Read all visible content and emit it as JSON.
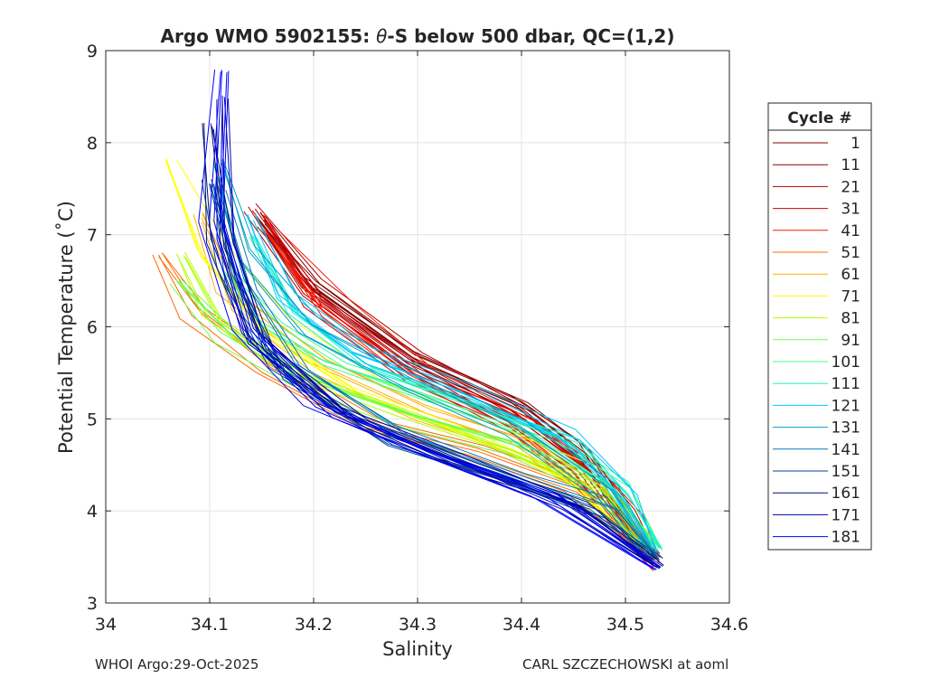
{
  "chart_data": {
    "type": "line",
    "title_prefix": "Argo WMO 5902155: ",
    "title_theta": "θ",
    "title_suffix": "-S below 500 dbar,  QC=(1,2)",
    "xlabel": "Salinity",
    "ylabel": "Potential Temperature (˚C)",
    "xlim": [
      34.0,
      34.6
    ],
    "ylim": [
      3,
      9
    ],
    "xticks": [
      34.0,
      34.1,
      34.2,
      34.3,
      34.4,
      34.5,
      34.6
    ],
    "xtick_labels": [
      "34",
      "34.1",
      "34.2",
      "34.3",
      "34.4",
      "34.5",
      "34.6"
    ],
    "yticks": [
      3,
      4,
      5,
      6,
      7,
      8,
      9
    ],
    "ytick_labels": [
      "3",
      "4",
      "5",
      "6",
      "7",
      "8",
      "9"
    ],
    "grid": true,
    "legend_title": "Cycle #",
    "legend_position": "right-outside",
    "series": [
      {
        "name": "1",
        "color": "#800000",
        "values": [
          [
            34.15,
            7.2
          ],
          [
            34.2,
            6.5
          ],
          [
            34.3,
            5.7
          ],
          [
            34.4,
            5.2
          ],
          [
            34.46,
            4.7
          ],
          [
            34.5,
            4.0
          ],
          [
            34.53,
            3.5
          ]
        ]
      },
      {
        "name": "11",
        "color": "#8c0000",
        "values": [
          [
            34.15,
            7.1
          ],
          [
            34.2,
            6.4
          ],
          [
            34.3,
            5.6
          ],
          [
            34.4,
            5.1
          ],
          [
            34.46,
            4.6
          ],
          [
            34.5,
            4.0
          ],
          [
            34.53,
            3.5
          ]
        ]
      },
      {
        "name": "21",
        "color": "#b40000",
        "values": [
          [
            34.14,
            7.3
          ],
          [
            34.2,
            6.4
          ],
          [
            34.3,
            5.6
          ],
          [
            34.4,
            5.0
          ],
          [
            34.46,
            4.5
          ],
          [
            34.5,
            3.9
          ],
          [
            34.53,
            3.5
          ]
        ]
      },
      {
        "name": "31",
        "color": "#dc0000",
        "values": [
          [
            34.15,
            7.2
          ],
          [
            34.2,
            6.3
          ],
          [
            34.3,
            5.5
          ],
          [
            34.4,
            5.0
          ],
          [
            34.46,
            4.5
          ],
          [
            34.5,
            3.9
          ],
          [
            34.53,
            3.5
          ]
        ]
      },
      {
        "name": "41",
        "color": "#ff1a00",
        "values": [
          [
            34.16,
            7.0
          ],
          [
            34.22,
            6.2
          ],
          [
            34.3,
            5.5
          ],
          [
            34.4,
            4.9
          ],
          [
            34.46,
            4.4
          ],
          [
            34.5,
            3.9
          ],
          [
            34.53,
            3.4
          ]
        ]
      },
      {
        "name": "51",
        "color": "#ff6a00",
        "values": [
          [
            34.05,
            6.8
          ],
          [
            34.08,
            6.2
          ],
          [
            34.15,
            5.6
          ],
          [
            34.25,
            5.0
          ],
          [
            34.35,
            4.7
          ],
          [
            34.45,
            4.3
          ],
          [
            34.52,
            3.6
          ]
        ]
      },
      {
        "name": "61",
        "color": "#ffb000",
        "values": [
          [
            34.09,
            7.2
          ],
          [
            34.12,
            6.3
          ],
          [
            34.2,
            5.6
          ],
          [
            34.3,
            5.1
          ],
          [
            34.4,
            4.7
          ],
          [
            34.47,
            4.2
          ],
          [
            34.52,
            3.6
          ]
        ]
      },
      {
        "name": "71",
        "color": "#ffff00",
        "values": [
          [
            34.06,
            7.8
          ],
          [
            34.1,
            6.8
          ],
          [
            34.16,
            6.0
          ],
          [
            34.25,
            5.3
          ],
          [
            34.35,
            4.9
          ],
          [
            34.45,
            4.4
          ],
          [
            34.52,
            3.6
          ]
        ]
      },
      {
        "name": "81",
        "color": "#b4ff00",
        "values": [
          [
            34.07,
            6.8
          ],
          [
            34.1,
            6.1
          ],
          [
            34.18,
            5.5
          ],
          [
            34.28,
            5.1
          ],
          [
            34.38,
            4.7
          ],
          [
            34.47,
            4.3
          ],
          [
            34.52,
            3.6
          ]
        ]
      },
      {
        "name": "91",
        "color": "#6aff4c",
        "values": [
          [
            34.07,
            6.5
          ],
          [
            34.12,
            5.9
          ],
          [
            34.2,
            5.4
          ],
          [
            34.3,
            5.0
          ],
          [
            34.4,
            4.7
          ],
          [
            34.48,
            4.3
          ],
          [
            34.53,
            3.6
          ]
        ]
      },
      {
        "name": "101",
        "color": "#3cff8c",
        "values": [
          [
            34.12,
            6.6
          ],
          [
            34.16,
            6.0
          ],
          [
            34.22,
            5.6
          ],
          [
            34.32,
            5.2
          ],
          [
            34.42,
            4.8
          ],
          [
            34.49,
            4.3
          ],
          [
            34.53,
            3.6
          ]
        ]
      },
      {
        "name": "111",
        "color": "#1ef0c8",
        "values": [
          [
            34.14,
            7.0
          ],
          [
            34.18,
            6.2
          ],
          [
            34.25,
            5.6
          ],
          [
            34.35,
            5.2
          ],
          [
            34.45,
            4.8
          ],
          [
            34.5,
            4.2
          ],
          [
            34.53,
            3.6
          ]
        ]
      },
      {
        "name": "121",
        "color": "#00c8ff",
        "values": [
          [
            34.14,
            7.2
          ],
          [
            34.18,
            6.3
          ],
          [
            34.25,
            5.7
          ],
          [
            34.35,
            5.3
          ],
          [
            34.45,
            4.8
          ],
          [
            34.5,
            4.2
          ],
          [
            34.53,
            3.5
          ]
        ]
      },
      {
        "name": "131",
        "color": "#00a0c8",
        "values": [
          [
            34.11,
            7.8
          ],
          [
            34.14,
            6.8
          ],
          [
            34.2,
            6.0
          ],
          [
            34.3,
            5.4
          ],
          [
            34.4,
            4.9
          ],
          [
            34.49,
            4.2
          ],
          [
            34.53,
            3.5
          ]
        ]
      },
      {
        "name": "141",
        "color": "#0078b4",
        "values": [
          [
            34.11,
            7.5
          ],
          [
            34.13,
            6.5
          ],
          [
            34.18,
            5.6
          ],
          [
            34.28,
            4.9
          ],
          [
            34.4,
            4.4
          ],
          [
            34.48,
            4.1
          ],
          [
            34.53,
            3.5
          ]
        ]
      },
      {
        "name": "151",
        "color": "#0046a0",
        "values": [
          [
            34.1,
            7.6
          ],
          [
            34.12,
            6.6
          ],
          [
            34.17,
            5.5
          ],
          [
            34.27,
            4.8
          ],
          [
            34.38,
            4.4
          ],
          [
            34.47,
            4.0
          ],
          [
            34.53,
            3.5
          ]
        ]
      },
      {
        "name": "161",
        "color": "#00147a",
        "values": [
          [
            34.1,
            8.2
          ],
          [
            34.11,
            6.9
          ],
          [
            34.15,
            5.8
          ],
          [
            34.24,
            5.0
          ],
          [
            34.35,
            4.5
          ],
          [
            34.45,
            4.1
          ],
          [
            34.53,
            3.4
          ]
        ]
      },
      {
        "name": "171",
        "color": "#0000b4",
        "values": [
          [
            34.11,
            8.5
          ],
          [
            34.11,
            7.0
          ],
          [
            34.14,
            5.9
          ],
          [
            34.22,
            5.1
          ],
          [
            34.33,
            4.6
          ],
          [
            34.44,
            4.1
          ],
          [
            34.53,
            3.4
          ]
        ]
      },
      {
        "name": "181",
        "color": "#0000ff",
        "values": [
          [
            34.11,
            8.8
          ],
          [
            34.1,
            7.2
          ],
          [
            34.13,
            6.0
          ],
          [
            34.2,
            5.2
          ],
          [
            34.3,
            4.7
          ],
          [
            34.42,
            4.2
          ],
          [
            34.53,
            3.4
          ]
        ]
      }
    ]
  },
  "footer": {
    "left": "WHOI Argo:29-Oct-2025",
    "right": "CARL SZCZECHOWSKI at aoml"
  }
}
